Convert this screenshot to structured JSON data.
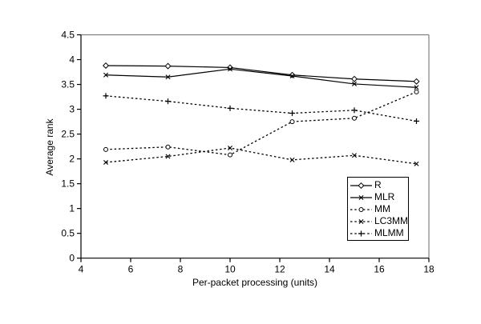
{
  "figure": {
    "background": "#ffffff",
    "plot_border_color": "#808080",
    "axis_color": "#000000",
    "line_color": "#000000",
    "text_color": "#000000"
  },
  "chart_data": {
    "type": "line",
    "title": "",
    "xlabel": "Per-packet processing (units)",
    "ylabel": "Average rank",
    "xlim": [
      4,
      18
    ],
    "xtick_step": 2,
    "ylim": [
      0,
      4.5
    ],
    "ytick_step": 0.5,
    "grid": false,
    "legend_position": "inside-bottom-right",
    "x": [
      5,
      7.5,
      10,
      12.5,
      15,
      17.5
    ],
    "series": [
      {
        "name": "R",
        "line": "solid",
        "marker": "diamond",
        "values": [
          3.88,
          3.87,
          3.84,
          3.69,
          3.61,
          3.56
        ]
      },
      {
        "name": "MLR",
        "line": "solid",
        "marker": "x",
        "values": [
          3.69,
          3.65,
          3.81,
          3.67,
          3.51,
          3.44
        ]
      },
      {
        "name": "MM",
        "line": "dotted",
        "marker": "circle",
        "values": [
          2.19,
          2.24,
          2.08,
          2.75,
          2.82,
          3.35
        ]
      },
      {
        "name": "LC3MM",
        "line": "dotted",
        "marker": "x",
        "values": [
          1.93,
          2.05,
          2.22,
          1.98,
          2.07,
          1.9
        ]
      },
      {
        "name": "MLMM",
        "line": "dotted",
        "marker": "plus",
        "values": [
          3.27,
          3.16,
          3.02,
          2.92,
          2.98,
          2.76
        ]
      }
    ]
  }
}
